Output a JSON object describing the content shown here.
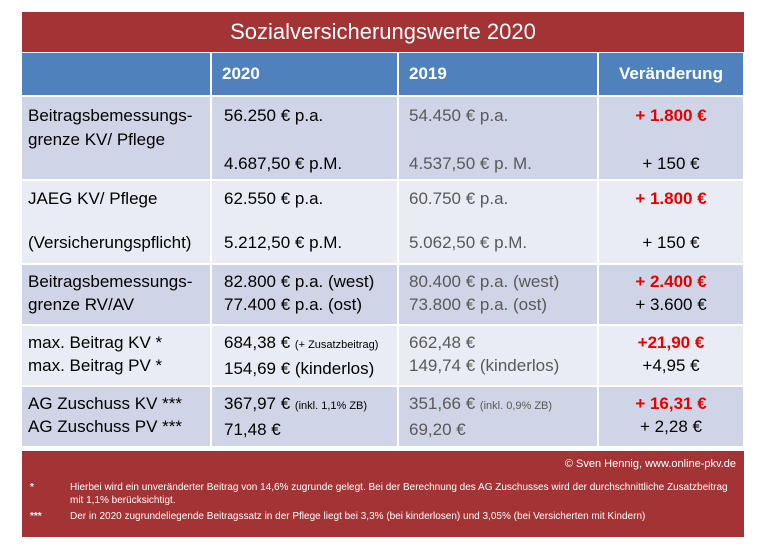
{
  "title": "Sozialversicherungswerte 2020",
  "headers": [
    "",
    "2020",
    "2019",
    "Veränderung"
  ],
  "rows": [
    {
      "label": [
        "Beitragsbemessungs-",
        "grenze KV/ Pflege"
      ],
      "v2020": [
        "56.250 € p.a.",
        "",
        "4.687,50 € p.M."
      ],
      "v2019": [
        "54.450 € p.a.",
        "",
        "4.537,50 € p. M."
      ],
      "change": [
        "+ 1.800 €",
        "",
        "+ 150 €"
      ]
    },
    {
      "label": [
        "JAEG KV/ Pflege",
        "",
        "(Versicherungspflicht)"
      ],
      "v2020": [
        "62.550 € p.a.",
        "",
        "5.212,50 € p.M."
      ],
      "v2019": [
        "60.750 € p.a.",
        "",
        "5.062,50 € p.M."
      ],
      "change": [
        "+ 1.800 €",
        "",
        "+ 150 €"
      ]
    },
    {
      "label": [
        "Beitragsbemessungs-",
        "grenze RV/AV"
      ],
      "v2020": [
        "82.800 € p.a. (west)",
        "77.400 € p.a. (ost)"
      ],
      "v2019": [
        "80.400 € p.a. (west)",
        "73.800 € p.a. (ost)"
      ],
      "change": [
        "+ 2.400 €",
        "+ 3.600 €"
      ]
    },
    {
      "label": [
        "max. Beitrag KV *",
        "max. Beitrag PV *"
      ],
      "v2020_main": "684,38 €",
      "v2020_note": "(+ Zusatzbeitrag)",
      "v2020_line2": "154,69 € (kinderlos)",
      "v2019": [
        "662,48 €",
        "149,74 € (kinderlos)"
      ],
      "change": [
        "+21,90 €",
        "+4,95 €"
      ]
    },
    {
      "label": [
        "AG Zuschuss KV ***",
        "AG Zuschuss PV ***"
      ],
      "v2020_main": "367,97 €",
      "v2020_note": "(inkl. 1,1% ZB)",
      "v2020_line2": "71,48 €",
      "v2019_main": "351,66 €",
      "v2019_note": "(inkl. 0,9% ZB)",
      "v2019_line2": "69,20 €",
      "change": [
        "+ 16,31 €",
        "+ 2,28 €"
      ]
    }
  ],
  "footer": {
    "copyright": "© Sven Hennig, www.online-pkv.de",
    "notes": [
      {
        "mark": "*",
        "text": "Hierbei wird ein unveränderter Beitrag von 14,6% zugrunde gelegt. Bei der Berechnung des AG Zuschusses wird der durchschnittliche Zusatzbeitrag mit 1,1% berücksichtigt."
      },
      {
        "mark": "***",
        "text": "Der in 2020 zugrundeliegende Beitragssatz in der Pflege liegt bei 3,3% (bei kinderlosen) und 3,05% (bei Versicherten mit Kindern)"
      }
    ]
  },
  "colors": {
    "title_bg": "#a33334",
    "header_bg": "#4f81bd",
    "row_dark": "#cfd5e6",
    "row_light": "#e9ecf4",
    "increase": "#e60000"
  }
}
